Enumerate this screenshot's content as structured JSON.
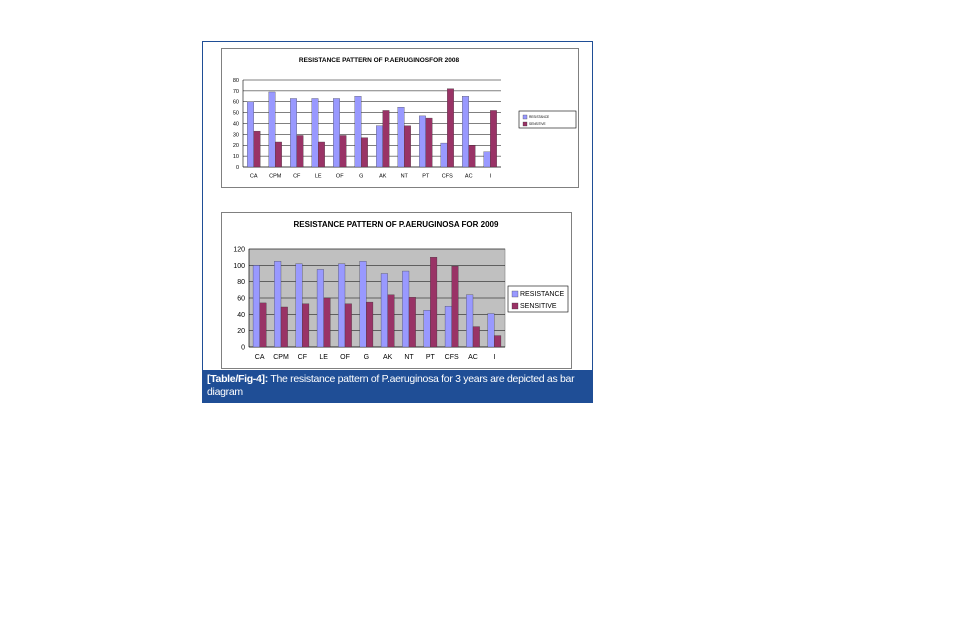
{
  "colors": {
    "resistance": "#9999ff",
    "sensitive": "#993366",
    "caption_bg": "#1f4e96",
    "plot_bg_2009": "#c0c0c0"
  },
  "chart_data": [
    {
      "type": "bar",
      "title": "RESISTANCE PATTERN OF P.AERUGINOSFOR 2008",
      "categories": [
        "CA",
        "CPM",
        "CF",
        "LE",
        "OF",
        "G",
        "AK",
        "NT",
        "PT",
        "CFS",
        "AC",
        "I"
      ],
      "series": [
        {
          "name": "RESISTANCE",
          "values": [
            60,
            69,
            63,
            63,
            63,
            65,
            38,
            55,
            47,
            22,
            65,
            14
          ]
        },
        {
          "name": "SENSITIVE",
          "values": [
            33,
            23,
            29,
            23,
            29,
            27,
            52,
            38,
            45,
            72,
            20,
            52
          ]
        }
      ],
      "ylim": [
        0,
        80
      ],
      "yticks": [
        0,
        10,
        20,
        30,
        40,
        50,
        60,
        70,
        80
      ],
      "grid": true,
      "legend_position": "right"
    },
    {
      "type": "bar",
      "title": "RESISTANCE PATTERN OF P.AERUGINOSA FOR 2009",
      "categories": [
        "CA",
        "CPM",
        "CF",
        "LE",
        "OF",
        "G",
        "AK",
        "NT",
        "PT",
        "CFS",
        "AC",
        "I"
      ],
      "series": [
        {
          "name": "RESISTANCE",
          "values": [
            100,
            105,
            102,
            95,
            102,
            105,
            90,
            93,
            45,
            50,
            64,
            41
          ]
        },
        {
          "name": "SENSITIVE",
          "values": [
            54,
            49,
            53,
            60,
            53,
            55,
            64,
            61,
            110,
            99,
            25,
            14
          ]
        }
      ],
      "ylim": [
        0,
        120
      ],
      "yticks": [
        0,
        20,
        40,
        60,
        80,
        100,
        120
      ],
      "grid": true,
      "legend_position": "right"
    }
  ],
  "caption": {
    "label": "[Table/Fig-4]:",
    "text": " The resistance pattern of P.aeruginosa for 3 years are depicted as bar diagram"
  }
}
